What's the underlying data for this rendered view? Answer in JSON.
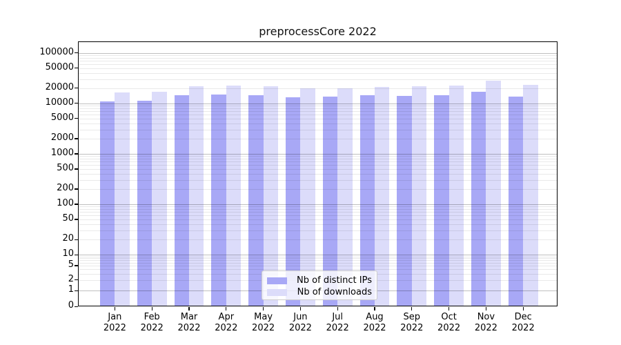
{
  "title": "preprocessCore 2022",
  "legend": {
    "items": [
      {
        "label": "Nb of distinct IPs",
        "color": "#a8a8f6"
      },
      {
        "label": "Nb of downloads",
        "color": "#dcdcfa"
      }
    ]
  },
  "colors": {
    "distinct_ips": "#a8a8f6",
    "downloads": "#dcdcfa",
    "axis": "#000000"
  },
  "y_axis": {
    "tick_labels": [
      "100000",
      "50000",
      "20000",
      "10000",
      "5000",
      "2000",
      "1000",
      "500",
      "200",
      "100",
      "50",
      "20",
      "10",
      "5",
      "2",
      "1",
      "0"
    ]
  },
  "x_axis": {
    "tick_labels": [
      "Jan 2022",
      "Feb 2022",
      "Mar 2022",
      "Apr 2022",
      "May 2022",
      "Jun 2022",
      "Jul 2022",
      "Aug 2022",
      "Sep 2022",
      "Oct 2022",
      "Nov 2022",
      "Dec 2022"
    ]
  },
  "chart_data": {
    "type": "bar",
    "title": "preprocessCore 2022",
    "categories": [
      "Jan 2022",
      "Feb 2022",
      "Mar 2022",
      "Apr 2022",
      "May 2022",
      "Jun 2022",
      "Jul 2022",
      "Aug 2022",
      "Sep 2022",
      "Oct 2022",
      "Nov 2022",
      "Dec 2022"
    ],
    "series": [
      {
        "name": "Nb of distinct IPs",
        "color": "#a8a8f6",
        "values": [
          10300,
          10500,
          13500,
          14000,
          13700,
          12400,
          12800,
          13400,
          13100,
          13800,
          16000,
          12900
        ]
      },
      {
        "name": "Nb of downloads",
        "color": "#dcdcfa",
        "values": [
          15600,
          15900,
          20500,
          20800,
          20600,
          18900,
          18700,
          20100,
          20300,
          21300,
          26000,
          22100
        ]
      }
    ],
    "yscale": "symlog",
    "ylim": [
      0,
      160000
    ],
    "y_ticks": [
      100000,
      50000,
      20000,
      10000,
      5000,
      2000,
      1000,
      500,
      200,
      100,
      50,
      20,
      10,
      5,
      2,
      1,
      0
    ],
    "grid": "horizontal log minor+major lines drawn over bars",
    "legend_position": "inside lower-center-left"
  }
}
